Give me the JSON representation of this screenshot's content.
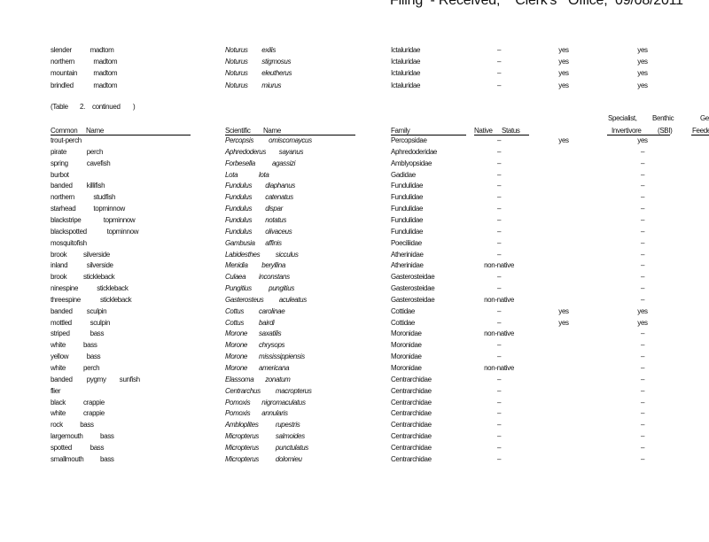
{
  "header": {
    "title": "Filing  - Received,    Clerk's   Office,  09/08/2011"
  },
  "top_rows": [
    {
      "common": [
        "slender",
        "madtom"
      ],
      "genus": "Noturus",
      "species": "exilis",
      "family": "Ictaluridae",
      "native": "–",
      "col5": "yes",
      "sbi": "yes"
    },
    {
      "common": [
        "northern",
        "madtom"
      ],
      "genus": "Noturus",
      "species": "stigmosus",
      "family": "Ictaluridae",
      "native": "–",
      "col5": "yes",
      "sbi": "yes"
    },
    {
      "common": [
        "mountain",
        "madtom"
      ],
      "genus": "Noturus",
      "species": "eleutherus",
      "family": "Ictaluridae",
      "native": "–",
      "col5": "yes",
      "sbi": "yes"
    },
    {
      "common": [
        "brindled",
        "madtom"
      ],
      "genus": "Noturus",
      "species": "miurus",
      "family": "Ictaluridae",
      "native": "–",
      "col5": "yes",
      "sbi": "yes"
    }
  ],
  "continued_label": [
    "(Table",
    "2.",
    "continued",
    ")"
  ],
  "columns": {
    "common": [
      "Common",
      "Name"
    ],
    "scientific": [
      "Scientific",
      "Name"
    ],
    "family": "Family",
    "native": [
      "Native",
      "Status"
    ],
    "specialist": [
      "Specialist,",
      "Invertivore"
    ],
    "benthic": [
      "Benthic",
      "(SBI)"
    ],
    "feeder": [
      "Ge",
      "Feeder"
    ]
  },
  "rows": [
    {
      "common": [
        "trout-perch"
      ],
      "genus": "Percopsis",
      "species": "omiscomaycus",
      "family": "Percopsidae",
      "native": "–",
      "col5": "yes",
      "sbi": "yes"
    },
    {
      "common": [
        "pirate",
        "perch"
      ],
      "genus": "Aphredoderus",
      "species": "sayanus",
      "family": "Aphredoderidae",
      "native": "–",
      "col5": "",
      "sbi": "–"
    },
    {
      "common": [
        "spring",
        "cavefish"
      ],
      "genus": "Forbesella",
      "species": "agassizi",
      "family": "Amblyopsidae",
      "native": "–",
      "col5": "",
      "sbi": "–"
    },
    {
      "common": [
        "burbot"
      ],
      "genus": "Lota",
      "species": "lota",
      "family": "Gadidae",
      "native": "–",
      "col5": "",
      "sbi": "–"
    },
    {
      "common": [
        "banded",
        "killifish"
      ],
      "genus": "Fundulus",
      "species": "diaphanus",
      "family": "Fundulidae",
      "native": "–",
      "col5": "",
      "sbi": "–"
    },
    {
      "common": [
        "northern",
        "studfish"
      ],
      "genus": "Fundulus",
      "species": "catenatus",
      "family": "Fundulidae",
      "native": "–",
      "col5": "",
      "sbi": "–"
    },
    {
      "common": [
        "starhead",
        "topminnow"
      ],
      "genus": "Fundulus",
      "species": "dispar",
      "family": "Fundulidae",
      "native": "–",
      "col5": "",
      "sbi": "–"
    },
    {
      "common": [
        "blackstripe",
        "topminnow"
      ],
      "genus": "Fundulus",
      "species": "notatus",
      "family": "Fundulidae",
      "native": "–",
      "col5": "",
      "sbi": "–"
    },
    {
      "common": [
        "blackspotted",
        "topminnow"
      ],
      "genus": "Fundulus",
      "species": "olivaceus",
      "family": "Fundulidae",
      "native": "–",
      "col5": "",
      "sbi": "–"
    },
    {
      "common": [
        "mosquitofish"
      ],
      "genus": "Gambusia",
      "species": "affinis",
      "family": "Poeciliidae",
      "native": "–",
      "col5": "",
      "sbi": "–"
    },
    {
      "common": [
        "brook",
        "silverside"
      ],
      "genus": "Labidesthes",
      "species": "sicculus",
      "family": "Atherinidae",
      "native": "–",
      "col5": "",
      "sbi": "–"
    },
    {
      "common": [
        "inland",
        "silverside"
      ],
      "genus": "Menidia",
      "species": "beryllina",
      "family": "Atherinidae",
      "native": "non-native",
      "col5": "",
      "sbi": "–"
    },
    {
      "common": [
        "brook",
        "stickleback"
      ],
      "genus": "Culaea",
      "species": "inconstans",
      "family": "Gasterosteidae",
      "native": "–",
      "col5": "",
      "sbi": "–"
    },
    {
      "common": [
        "ninespine",
        "stickleback"
      ],
      "genus": "Pungitius",
      "species": "pungitius",
      "family": "Gasterosteidae",
      "native": "–",
      "col5": "",
      "sbi": "–"
    },
    {
      "common": [
        "threespine",
        "stickleback"
      ],
      "genus": "Gasterosteus",
      "species": "aculeatus",
      "family": "Gasterosteidae",
      "native": "non-native",
      "col5": "",
      "sbi": "–"
    },
    {
      "common": [
        "banded",
        "sculpin"
      ],
      "genus": "Cottus",
      "species": "carolinae",
      "family": "Cottidae",
      "native": "–",
      "col5": "yes",
      "sbi": "yes"
    },
    {
      "common": [
        "mottled",
        "sculpin"
      ],
      "genus": "Cottus",
      "species": "bairdi",
      "family": "Cottidae",
      "native": "–",
      "col5": "yes",
      "sbi": "yes"
    },
    {
      "common": [
        "striped",
        "bass"
      ],
      "genus": "Morone",
      "species": "saxatilis",
      "family": "Moronidae",
      "native": "non-native",
      "col5": "",
      "sbi": "–"
    },
    {
      "common": [
        "white",
        "bass"
      ],
      "genus": "Morone",
      "species": "chrysops",
      "family": "Moronidae",
      "native": "–",
      "col5": "",
      "sbi": "–"
    },
    {
      "common": [
        "yellow",
        "bass"
      ],
      "genus": "Morone",
      "species": "mississippiensis",
      "family": "Moronidae",
      "native": "–",
      "col5": "",
      "sbi": "–"
    },
    {
      "common": [
        "white",
        "perch"
      ],
      "genus": "Morone",
      "species": "americana",
      "family": "Moronidae",
      "native": "non-native",
      "col5": "",
      "sbi": "–"
    },
    {
      "common": [
        "banded",
        "pygmy",
        "sunfish"
      ],
      "genus": "Elassoma",
      "species": "zonatum",
      "family": "Centrarchidae",
      "native": "–",
      "col5": "",
      "sbi": "–"
    },
    {
      "common": [
        "flier"
      ],
      "genus": "Centrarchus",
      "species": "macropterus",
      "family": "Centrarchidae",
      "native": "–",
      "col5": "",
      "sbi": "–"
    },
    {
      "common": [
        "black",
        "crappie"
      ],
      "genus": "Pomoxis",
      "species": "nigromaculatus",
      "family": "Centrarchidae",
      "native": "–",
      "col5": "",
      "sbi": "–"
    },
    {
      "common": [
        "white",
        "crappie"
      ],
      "genus": "Pomoxis",
      "species": "annularis",
      "family": "Centrarchidae",
      "native": "–",
      "col5": "",
      "sbi": "–"
    },
    {
      "common": [
        "rock",
        "bass"
      ],
      "genus": "Ambloplites",
      "species": "rupestris",
      "family": "Centrarchidae",
      "native": "–",
      "col5": "",
      "sbi": "–"
    },
    {
      "common": [
        "largemouth",
        "bass"
      ],
      "genus": "Micropterus",
      "species": "salmoides",
      "family": "Centrarchidae",
      "native": "–",
      "col5": "",
      "sbi": "–"
    },
    {
      "common": [
        "spotted",
        "bass"
      ],
      "genus": "Micropterus",
      "species": "punctulatus",
      "family": "Centrarchidae",
      "native": "–",
      "col5": "",
      "sbi": "–"
    },
    {
      "common": [
        "smallmouth",
        "bass"
      ],
      "genus": "Micropterus",
      "species": "dolomieu",
      "family": "Centrarchidae",
      "native": "–",
      "col5": "",
      "sbi": "–"
    }
  ]
}
